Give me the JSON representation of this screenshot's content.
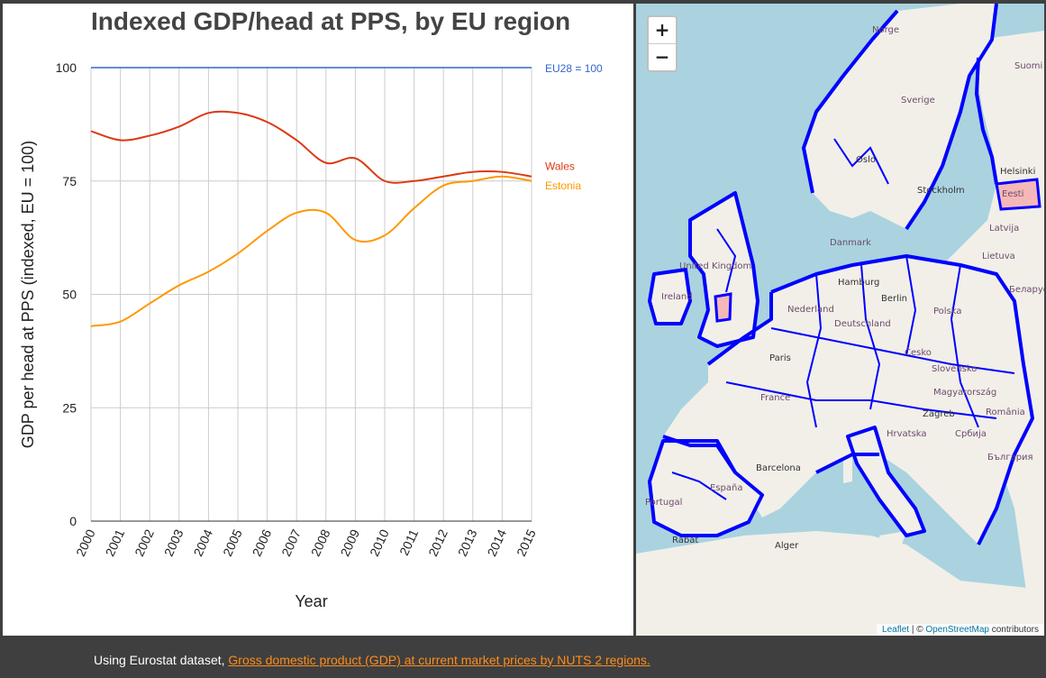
{
  "chart_data": {
    "type": "line",
    "title": "Indexed GDP/head at PPS, by EU region",
    "xlabel": "Year",
    "ylabel": "GDP per head at PPS (indexed, EU = 100)",
    "x": [
      2000,
      2001,
      2002,
      2003,
      2004,
      2005,
      2006,
      2007,
      2008,
      2009,
      2010,
      2011,
      2012,
      2013,
      2014,
      2015
    ],
    "xlim": [
      2000,
      2015
    ],
    "ylim": [
      0,
      100
    ],
    "yticks": [
      0,
      25,
      50,
      75,
      100
    ],
    "grid": true,
    "reference_line": {
      "value": 100,
      "label": "EU28 = 100",
      "color": "#3366cc"
    },
    "series": [
      {
        "name": "Wales",
        "color": "#dc3912",
        "values": [
          86,
          84,
          85,
          87,
          90,
          90,
          88,
          84,
          79,
          80,
          75,
          75,
          76,
          77,
          77,
          76
        ]
      },
      {
        "name": "Estonia",
        "color": "#ff9900",
        "values": [
          43,
          44,
          48,
          52,
          55,
          59,
          64,
          68,
          68,
          62,
          63,
          69,
          74,
          75,
          76,
          75
        ]
      }
    ]
  },
  "map": {
    "zoom_in_label": "+",
    "zoom_out_label": "−",
    "attribution": {
      "leaflet": "Leaflet",
      "separator": " | © ",
      "osm": "OpenStreetMap",
      "suffix": " contributors"
    },
    "place_labels": [
      "Norge",
      "Suomi",
      "Sverige",
      "Oslo",
      "Stockholm",
      "Eesti",
      "Helsinki",
      "Latvija",
      "Lietuva",
      "Danmark",
      "Беларусь",
      "Hamburg",
      "Berlin",
      "Nederland",
      "Polska",
      "Deutschland",
      "Paris",
      "Česko",
      "France",
      "Slovensko",
      "Magyarország",
      "Zagreb",
      "România",
      "Hrvatska",
      "Србија",
      "България",
      "Barcelona",
      "España",
      "Portugal",
      "Alger",
      "Rabat",
      "Ireland",
      "United Kingdom"
    ],
    "highlight_color": "#f4b8b8",
    "border_color": "#0000ff"
  },
  "footer": {
    "prefix": "Using Eurostat dataset, ",
    "link_text": "Gross domestic product (GDP) at current market prices by NUTS 2 regions."
  }
}
